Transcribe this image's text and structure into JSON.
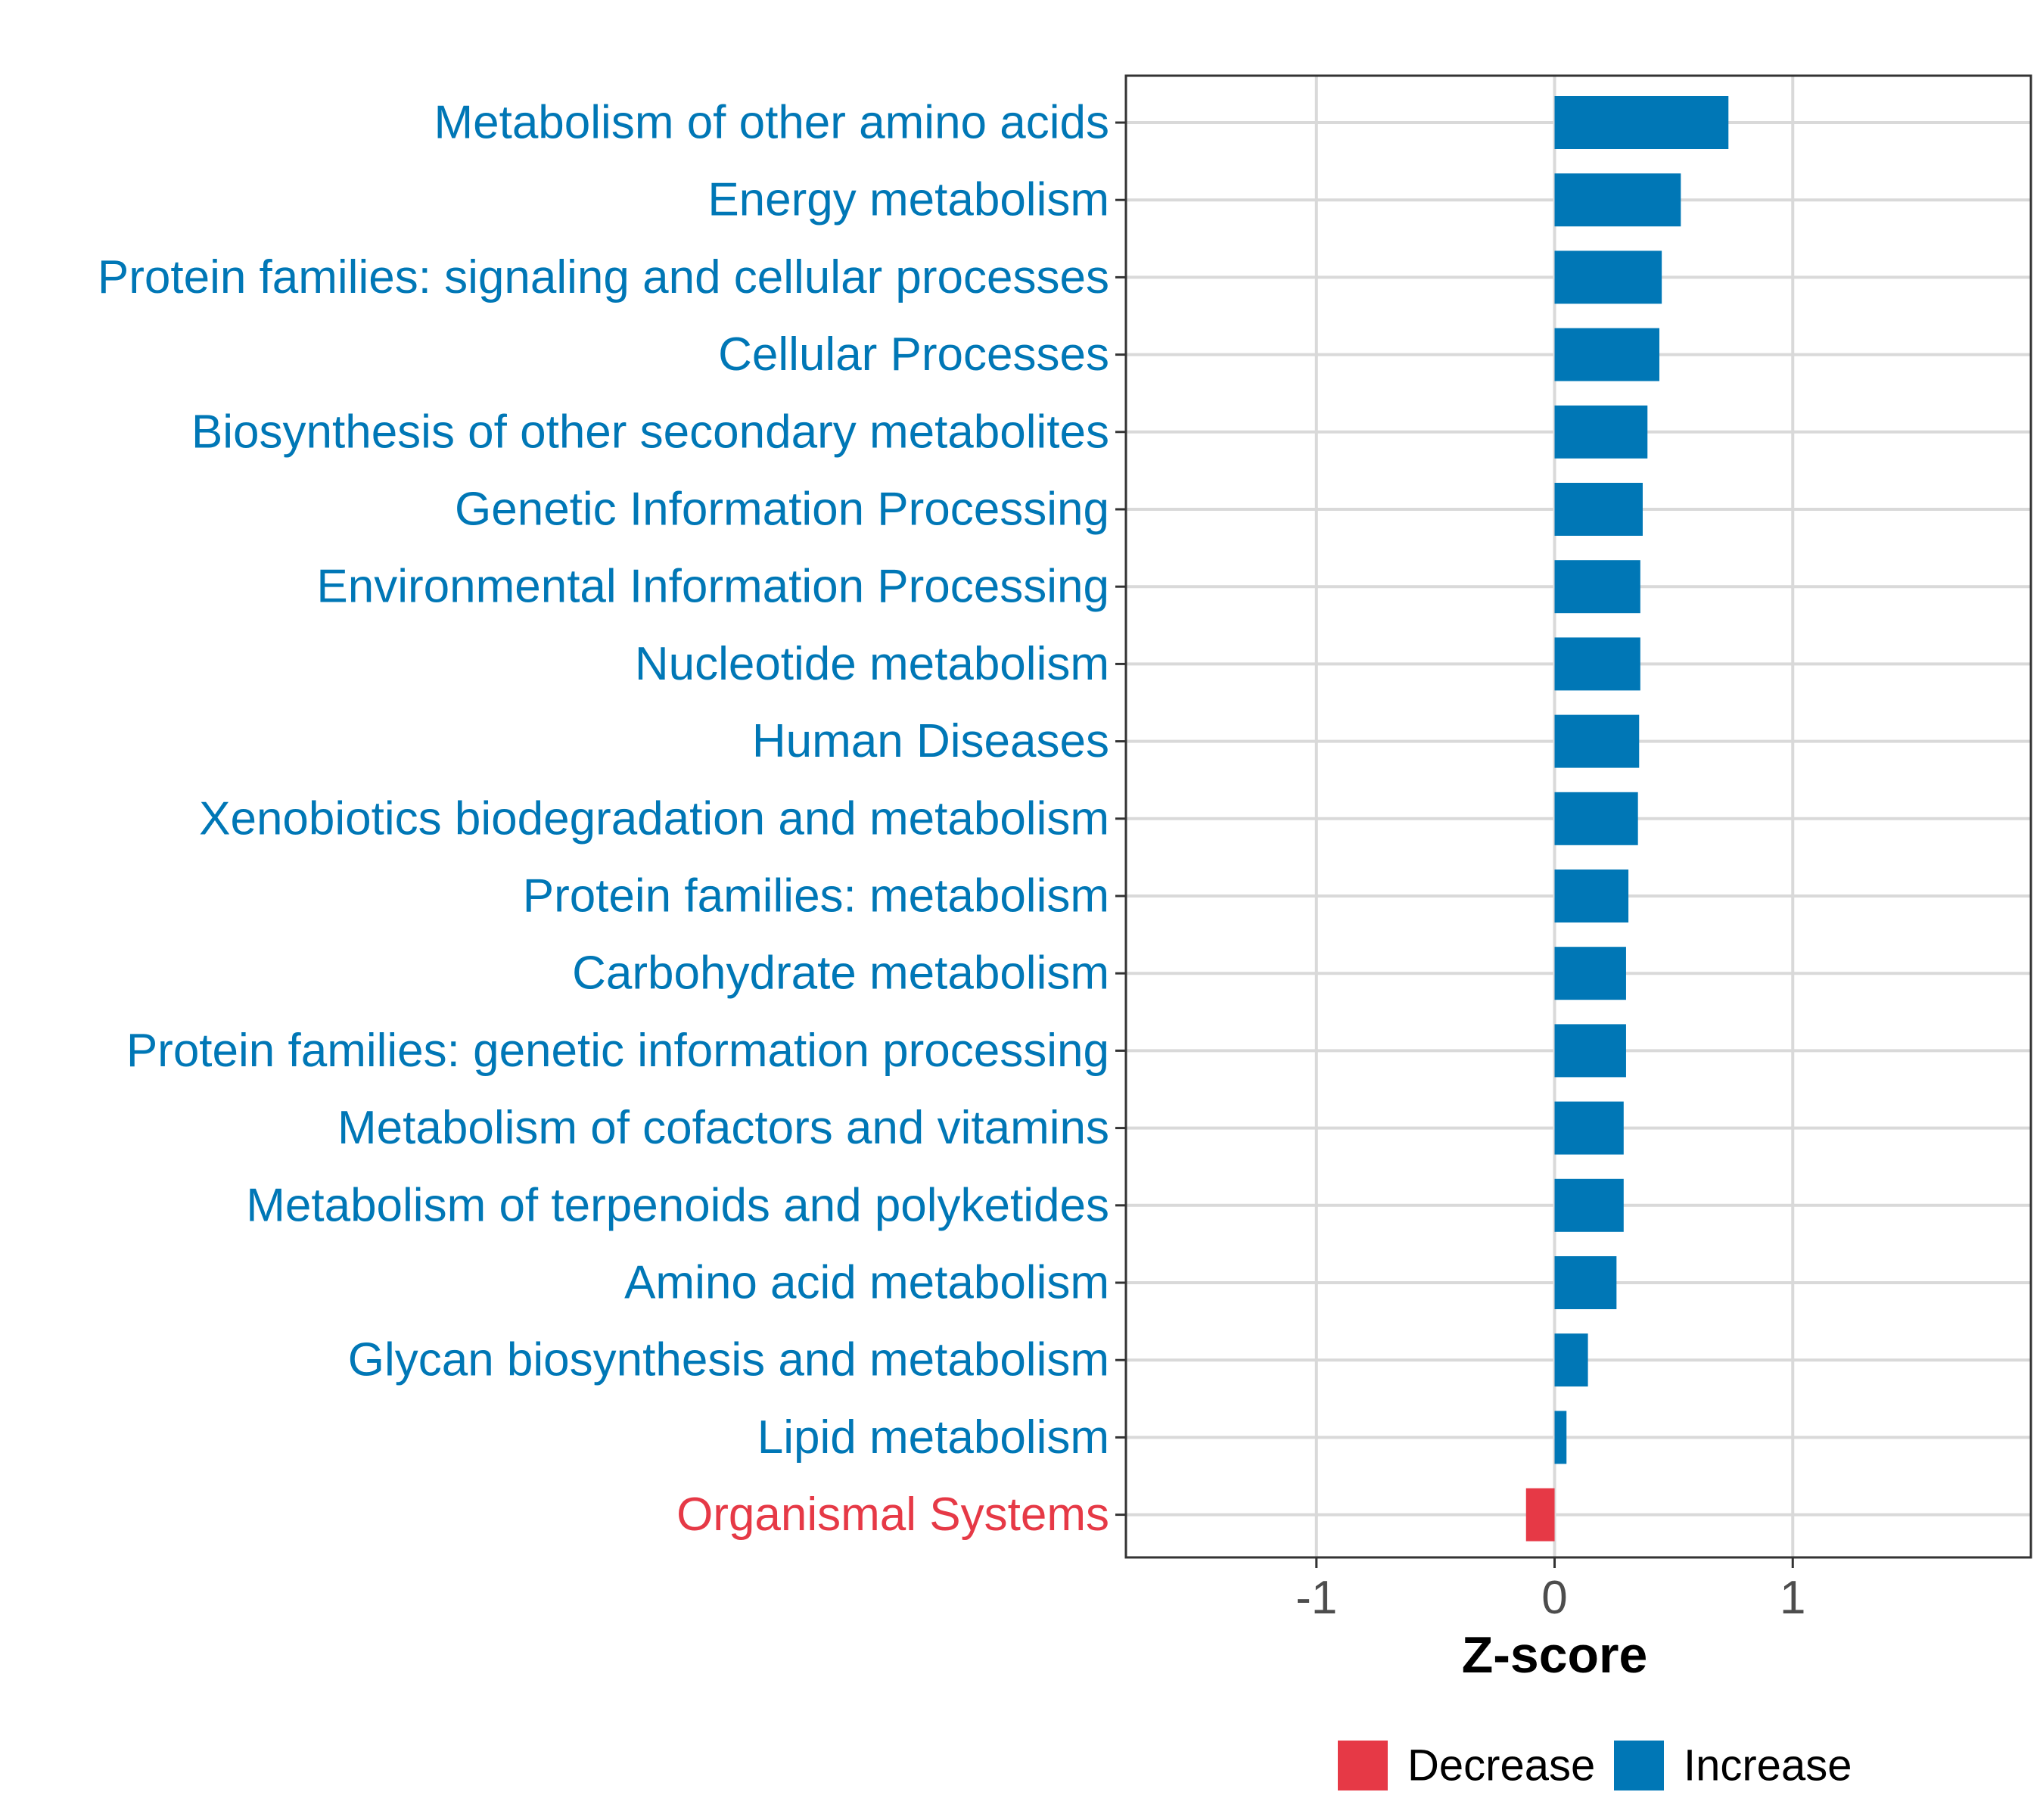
{
  "chart_data": {
    "type": "bar",
    "orientation": "horizontal",
    "xlabel": "Z-score",
    "ylabel": "",
    "xlim": [
      -1.8,
      2.0
    ],
    "x_ticks": [
      -1,
      0,
      1
    ],
    "x_tick_labels": [
      "-1",
      "0",
      "1"
    ],
    "grid": true,
    "legend_position": "bottom",
    "colors": {
      "Decrease": "#e63946",
      "Increase": "#0077b6"
    },
    "legend": [
      {
        "label": "Decrease",
        "color": "#e63946"
      },
      {
        "label": "Increase",
        "color": "#0077b6"
      }
    ],
    "categories": [
      "Metabolism of other amino acids",
      "Energy metabolism",
      "Protein families: signaling and cellular processes",
      "Cellular Processes",
      "Biosynthesis of other secondary metabolites",
      "Genetic Information Processing",
      "Environmental Information Processing",
      "Nucleotide metabolism",
      "Human Diseases",
      "Xenobiotics biodegradation and metabolism",
      "Protein families: metabolism",
      "Carbohydrate metabolism",
      "Protein families: genetic information processing",
      "Metabolism of cofactors and vitamins",
      "Metabolism of terpenoids and polyketides",
      "Amino acid metabolism",
      "Glycan biosynthesis and metabolism",
      "Lipid metabolism",
      "Organismal Systems"
    ],
    "values": [
      0.73,
      0.53,
      0.45,
      0.44,
      0.39,
      0.37,
      0.36,
      0.36,
      0.355,
      0.35,
      0.31,
      0.3,
      0.3,
      0.29,
      0.29,
      0.26,
      0.14,
      0.05,
      -0.12
    ],
    "groups": [
      "Increase",
      "Increase",
      "Increase",
      "Increase",
      "Increase",
      "Increase",
      "Increase",
      "Increase",
      "Increase",
      "Increase",
      "Increase",
      "Increase",
      "Increase",
      "Increase",
      "Increase",
      "Increase",
      "Increase",
      "Increase",
      "Decrease"
    ]
  }
}
